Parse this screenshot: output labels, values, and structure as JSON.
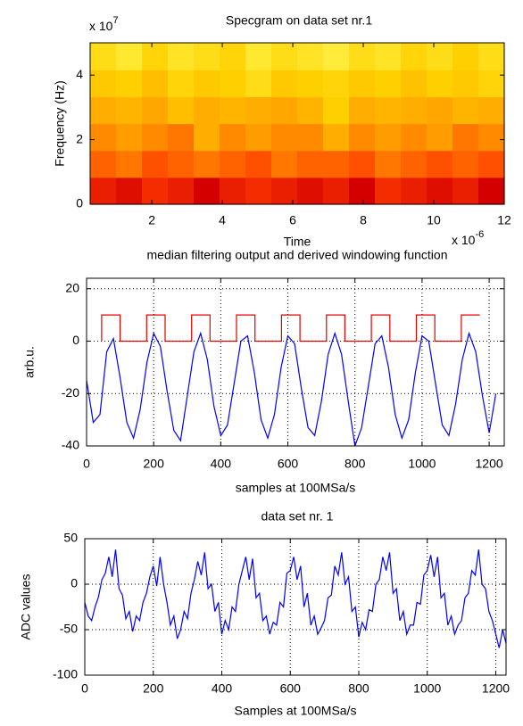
{
  "chart_data": [
    {
      "type": "spectrogram",
      "title": "Specgram on data set nr.1",
      "x_label": "Time",
      "y_label": "Frequency (Hz)",
      "x_exponent": {
        "base": "x 10",
        "power": "-6"
      },
      "y_exponent": {
        "base": "x 10",
        "power": "7"
      },
      "xlim": [
        0.25,
        12
      ],
      "ylim": [
        0,
        5
      ],
      "xticks": [
        2,
        4,
        6,
        8,
        10,
        12
      ],
      "yticks": [
        0,
        2,
        4
      ],
      "grid": false,
      "clim": [
        0,
        1
      ],
      "colormap": [
        "#7a0000",
        "#d40000",
        "#ff3c00",
        "#ff8a00",
        "#ffd000",
        "#ffff60"
      ],
      "z": [
        [
          0.3,
          0.25,
          0.35,
          0.3,
          0.2,
          0.3,
          0.35,
          0.3,
          0.25,
          0.3,
          0.2,
          0.35,
          0.3,
          0.25,
          0.3,
          0.2
        ],
        [
          0.5,
          0.55,
          0.45,
          0.5,
          0.55,
          0.5,
          0.45,
          0.55,
          0.5,
          0.5,
          0.45,
          0.55,
          0.5,
          0.45,
          0.5,
          0.45
        ],
        [
          0.6,
          0.65,
          0.6,
          0.55,
          0.7,
          0.6,
          0.65,
          0.6,
          0.6,
          0.7,
          0.6,
          0.65,
          0.6,
          0.65,
          0.55,
          0.6
        ],
        [
          0.7,
          0.72,
          0.68,
          0.75,
          0.7,
          0.72,
          0.7,
          0.68,
          0.72,
          0.8,
          0.7,
          0.72,
          0.7,
          0.68,
          0.72,
          0.7
        ],
        [
          0.78,
          0.8,
          0.75,
          0.82,
          0.78,
          0.8,
          0.85,
          0.78,
          0.8,
          0.82,
          0.78,
          0.8,
          0.76,
          0.8,
          0.78,
          0.82
        ],
        [
          0.85,
          0.9,
          0.82,
          0.88,
          0.85,
          0.82,
          0.9,
          0.85,
          0.88,
          0.92,
          0.85,
          0.88,
          0.82,
          0.85,
          0.8,
          0.85
        ]
      ]
    },
    {
      "type": "line",
      "title": "median filtering output and derived windowing function",
      "x_label": "samples at 100MSa/s",
      "y_label": "arb.u.",
      "xlim": [
        0,
        1245
      ],
      "ylim": [
        -40,
        24
      ],
      "xticks": [
        0,
        200,
        400,
        600,
        800,
        1000,
        1200
      ],
      "yticks": [
        -40,
        -20,
        0,
        20
      ],
      "grid": true,
      "series": [
        {
          "color": "#0000ff",
          "x": [
            0,
            20,
            40,
            60,
            80,
            100,
            120,
            140,
            160,
            180,
            200,
            220,
            240,
            260,
            280,
            300,
            320,
            340,
            360,
            380,
            400,
            420,
            440,
            460,
            480,
            500,
            520,
            540,
            560,
            580,
            600,
            620,
            640,
            660,
            680,
            700,
            720,
            740,
            760,
            780,
            800,
            820,
            840,
            860,
            880,
            900,
            920,
            940,
            960,
            980,
            1000,
            1020,
            1040,
            1060,
            1080,
            1100,
            1120,
            1140,
            1160,
            1180,
            1200,
            1220
          ],
          "values": [
            -15,
            -31,
            -28,
            -4,
            1,
            -14,
            -31,
            -37,
            -26,
            -8,
            3,
            -2,
            -19,
            -34,
            -38,
            -21,
            -4,
            3,
            -7,
            -25,
            -36,
            -32,
            -16,
            0,
            2,
            -12,
            -30,
            -37,
            -28,
            -10,
            2,
            -1,
            -18,
            -33,
            -36,
            -23,
            -5,
            3,
            -5,
            -23,
            -40,
            -33,
            -17,
            -1,
            2,
            -10,
            -28,
            -37,
            -30,
            -12,
            2,
            0,
            -16,
            -32,
            -36,
            -24,
            -7,
            3,
            -4,
            -21,
            -35,
            -20
          ]
        },
        {
          "color": "#e00000",
          "x": [
            45,
            45,
            100,
            100,
            179,
            179,
            234,
            234,
            313,
            313,
            368,
            368,
            447,
            447,
            502,
            502,
            581,
            581,
            636,
            636,
            715,
            715,
            770,
            770,
            849,
            849,
            904,
            904,
            983,
            983,
            1038,
            1038,
            1117,
            1117,
            1172
          ],
          "values": [
            0,
            10,
            10,
            0,
            0,
            10,
            10,
            0,
            0,
            10,
            10,
            0,
            0,
            10,
            10,
            0,
            0,
            10,
            10,
            0,
            0,
            10,
            10,
            0,
            0,
            10,
            10,
            0,
            0,
            10,
            10,
            0,
            0,
            10,
            10
          ]
        }
      ]
    },
    {
      "type": "line",
      "title": "data set nr. 1",
      "x_label": "Samples at 100MSa/s",
      "y_label": "ADC values",
      "xlim": [
        0,
        1230
      ],
      "ylim": [
        -100,
        50
      ],
      "xticks": [
        0,
        200,
        400,
        600,
        800,
        1000,
        1200
      ],
      "yticks": [
        -100,
        -50,
        0,
        50
      ],
      "grid": true,
      "series": [
        {
          "color": "#0000ff",
          "x": [
            0,
            10,
            20,
            30,
            40,
            50,
            60,
            70,
            80,
            90,
            100,
            110,
            120,
            130,
            140,
            150,
            160,
            170,
            180,
            190,
            200,
            210,
            220,
            230,
            240,
            250,
            260,
            270,
            280,
            290,
            300,
            310,
            320,
            330,
            340,
            350,
            360,
            370,
            380,
            390,
            400,
            410,
            420,
            430,
            440,
            450,
            460,
            470,
            480,
            490,
            500,
            510,
            520,
            530,
            540,
            550,
            560,
            570,
            580,
            590,
            600,
            610,
            620,
            630,
            640,
            650,
            660,
            670,
            680,
            690,
            700,
            710,
            720,
            730,
            740,
            750,
            760,
            770,
            780,
            790,
            800,
            810,
            820,
            830,
            840,
            850,
            860,
            870,
            880,
            890,
            900,
            910,
            920,
            930,
            940,
            950,
            960,
            970,
            980,
            990,
            1000,
            1010,
            1020,
            1030,
            1040,
            1050,
            1060,
            1070,
            1080,
            1090,
            1100,
            1110,
            1120,
            1130,
            1140,
            1150,
            1160,
            1170,
            1180,
            1190,
            1200,
            1210,
            1220,
            1230
          ],
          "values": [
            -20,
            -35,
            -40,
            -25,
            -14,
            5,
            12,
            30,
            8,
            38,
            -5,
            -12,
            -38,
            -30,
            -52,
            -35,
            -40,
            -20,
            -10,
            8,
            20,
            -2,
            30,
            0,
            -20,
            -45,
            -35,
            -60,
            -50,
            -30,
            -38,
            -10,
            5,
            25,
            10,
            35,
            -5,
            0,
            -30,
            -20,
            -55,
            -40,
            -50,
            -25,
            -30,
            0,
            15,
            30,
            5,
            28,
            -15,
            -10,
            -40,
            -35,
            -55,
            -42,
            -45,
            -20,
            -25,
            12,
            15,
            30,
            5,
            20,
            -25,
            -10,
            -45,
            -35,
            -55,
            -48,
            -40,
            -15,
            -12,
            20,
            10,
            35,
            0,
            8,
            -30,
            -25,
            -58,
            -42,
            -50,
            -28,
            -30,
            0,
            5,
            30,
            15,
            35,
            -10,
            -5,
            -40,
            -30,
            -55,
            -45,
            -45,
            -20,
            -22,
            10,
            15,
            32,
            8,
            30,
            -15,
            -10,
            -45,
            -35,
            -55,
            -45,
            -40,
            -15,
            -10,
            15,
            10,
            38,
            0,
            -5,
            -30,
            -40,
            -55,
            -70,
            -50,
            -65
          ]
        }
      ]
    }
  ]
}
